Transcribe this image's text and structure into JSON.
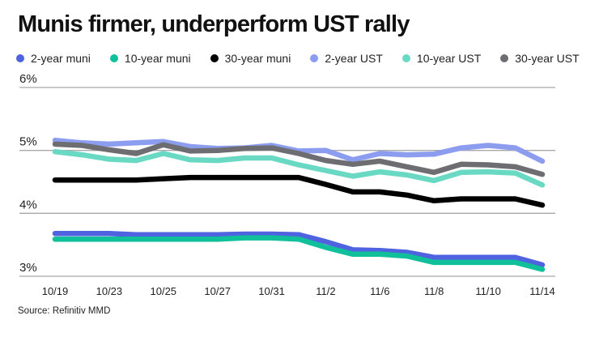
{
  "chart_data": {
    "type": "line",
    "title": "Munis firmer, underperform UST rally",
    "source": "Source: Refinitiv MMD",
    "x": [
      "10/19",
      "10/20",
      "10/23",
      "10/24",
      "10/25",
      "10/26",
      "10/27",
      "10/30",
      "10/31",
      "11/1",
      "11/2",
      "11/3",
      "11/6",
      "11/7",
      "11/8",
      "11/9",
      "11/10",
      "11/13",
      "11/14"
    ],
    "x_tick_labels": [
      {
        "x": "10/19",
        "label": "10/19"
      },
      {
        "x": "10/23",
        "label": "10/23"
      },
      {
        "x": "10/25",
        "label": "10/25"
      },
      {
        "x": "10/27",
        "label": "10/27"
      },
      {
        "x": "10/31",
        "label": "10/31"
      },
      {
        "x": "11/2",
        "label": "11/2"
      },
      {
        "x": "11/6",
        "label": "11/6"
      },
      {
        "x": "11/8",
        "label": "11/8"
      },
      {
        "x": "11/10",
        "label": "11/10"
      },
      {
        "x": "11/14",
        "label": "11/14"
      }
    ],
    "ylim": [
      3,
      6
    ],
    "y_ticks": [
      {
        "value": 6,
        "label": "6%"
      },
      {
        "value": 5,
        "label": "5%"
      },
      {
        "value": 4,
        "label": "4%"
      },
      {
        "value": 3,
        "label": "3%"
      }
    ],
    "grid": true,
    "legend_position": "top",
    "series": [
      {
        "name": "2-year UST",
        "color": "#8c9df0",
        "values": [
          5.16,
          5.12,
          5.1,
          5.12,
          5.14,
          5.06,
          5.03,
          5.04,
          5.08,
          4.99,
          5.0,
          4.85,
          4.95,
          4.93,
          4.94,
          5.04,
          5.08,
          5.04,
          4.83
        ]
      },
      {
        "name": "10-year UST",
        "color": "#6ad9c4",
        "values": [
          4.98,
          4.93,
          4.86,
          4.84,
          4.95,
          4.85,
          4.84,
          4.88,
          4.88,
          4.77,
          4.68,
          4.59,
          4.66,
          4.61,
          4.52,
          4.65,
          4.66,
          4.64,
          4.45
        ]
      },
      {
        "name": "30-year UST",
        "color": "#6e6e72",
        "values": [
          5.1,
          5.08,
          5.01,
          4.95,
          5.09,
          4.99,
          5.0,
          5.03,
          5.04,
          4.95,
          4.84,
          4.78,
          4.83,
          4.74,
          4.65,
          4.78,
          4.77,
          4.74,
          4.62
        ]
      },
      {
        "name": "30-year muni",
        "color": "#000000",
        "values": [
          4.53,
          4.53,
          4.53,
          4.53,
          4.55,
          4.57,
          4.57,
          4.57,
          4.57,
          4.57,
          4.46,
          4.34,
          4.34,
          4.29,
          4.2,
          4.23,
          4.23,
          4.23,
          4.13
        ]
      },
      {
        "name": "2-year muni",
        "color": "#4f63e0",
        "values": [
          3.68,
          3.68,
          3.68,
          3.66,
          3.66,
          3.66,
          3.66,
          3.67,
          3.67,
          3.66,
          3.55,
          3.42,
          3.41,
          3.38,
          3.3,
          3.3,
          3.3,
          3.3,
          3.18
        ]
      },
      {
        "name": "10-year muni",
        "color": "#10c09a",
        "values": [
          3.59,
          3.59,
          3.59,
          3.59,
          3.59,
          3.59,
          3.59,
          3.61,
          3.61,
          3.59,
          3.46,
          3.35,
          3.35,
          3.32,
          3.22,
          3.22,
          3.22,
          3.22,
          3.11
        ]
      }
    ],
    "legend_order": [
      "2-year muni",
      "10-year muni",
      "30-year muni",
      "2-year UST",
      "10-year UST",
      "30-year UST"
    ]
  }
}
